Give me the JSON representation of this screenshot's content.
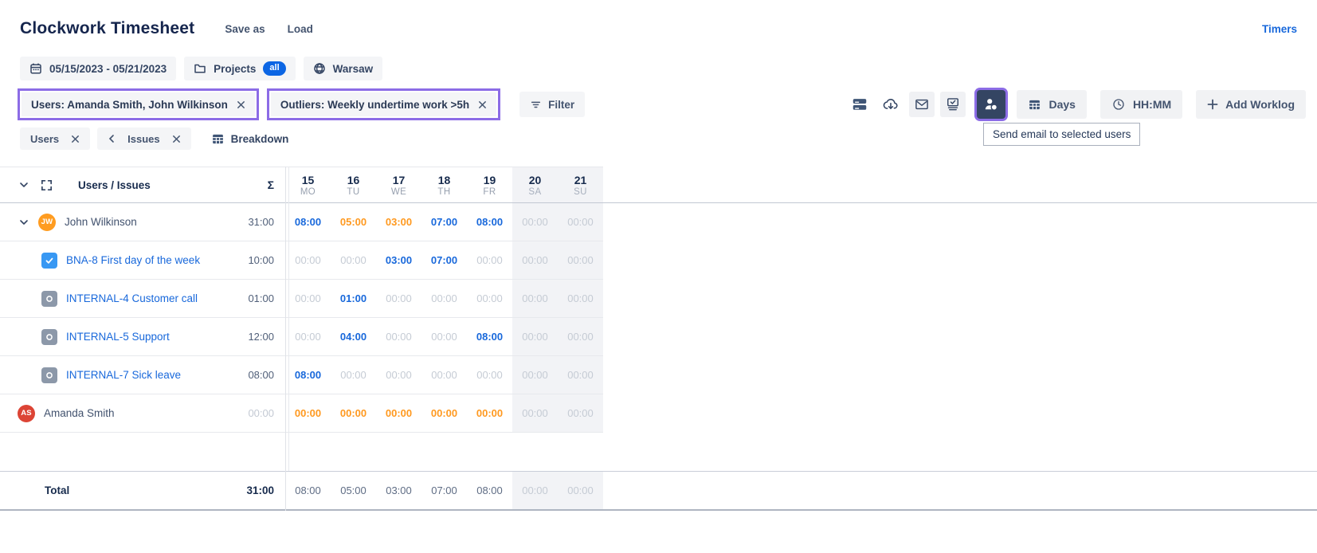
{
  "colors": {
    "highlight": "#8C6CE6",
    "blue": "#1868DB",
    "orange": "#FF991F",
    "badge_blue": "#0C66E4"
  },
  "header": {
    "title": "Clockwork Timesheet",
    "save_as": "Save as",
    "load": "Load",
    "timers": "Timers"
  },
  "scope": {
    "date_range": "05/15/2023 - 05/21/2023",
    "projects": "Projects",
    "projects_badge": "all",
    "location": "Warsaw"
  },
  "filters": {
    "users": "Users: Amanda Smith, John Wilkinson",
    "outliers": "Outliers: Weekly undertime work >5h",
    "filter": "Filter"
  },
  "toolbar": {
    "tooltip": "Send email to selected users",
    "days": "Days",
    "time_format": "HH:MM",
    "add_worklog": "Add Worklog",
    "icons": [
      "row-density",
      "cloud-download",
      "mail",
      "approvals-screen",
      "select-users",
      "grid-days",
      "clock",
      "plus"
    ]
  },
  "grouping": {
    "users": "Users",
    "issues": "Issues",
    "breakdown": "Breakdown"
  },
  "table": {
    "name_column": "Users / Issues",
    "sum_symbol": "Σ",
    "days": [
      {
        "num": "15",
        "name": "MO",
        "weekend": false
      },
      {
        "num": "16",
        "name": "TU",
        "weekend": false
      },
      {
        "num": "17",
        "name": "WE",
        "weekend": false
      },
      {
        "num": "18",
        "name": "TH",
        "weekend": false
      },
      {
        "num": "19",
        "name": "FR",
        "weekend": false
      },
      {
        "num": "20",
        "name": "SA",
        "weekend": true
      },
      {
        "num": "21",
        "name": "SU",
        "weekend": true
      }
    ],
    "rows": [
      {
        "kind": "user",
        "avatar": "JW",
        "avatar_color": "#FF9C20",
        "name": "John Wilkinson",
        "total": "31:00",
        "cells": [
          {
            "v": "08:00",
            "s": "blue"
          },
          {
            "v": "05:00",
            "s": "orange"
          },
          {
            "v": "03:00",
            "s": "orange"
          },
          {
            "v": "07:00",
            "s": "blue"
          },
          {
            "v": "08:00",
            "s": "blue"
          },
          {
            "v": "00:00",
            "s": "muted"
          },
          {
            "v": "00:00",
            "s": "muted"
          }
        ]
      },
      {
        "kind": "issue",
        "icon": "task",
        "name": "BNA-8 First day of the week",
        "total": "10:00",
        "cells": [
          {
            "v": "00:00",
            "s": "muted"
          },
          {
            "v": "00:00",
            "s": "muted"
          },
          {
            "v": "03:00",
            "s": "blue"
          },
          {
            "v": "07:00",
            "s": "blue"
          },
          {
            "v": "00:00",
            "s": "muted"
          },
          {
            "v": "00:00",
            "s": "muted"
          },
          {
            "v": "00:00",
            "s": "muted"
          }
        ]
      },
      {
        "kind": "issue",
        "icon": "circle",
        "name": "INTERNAL-4 Customer call",
        "total": "01:00",
        "cells": [
          {
            "v": "00:00",
            "s": "muted"
          },
          {
            "v": "01:00",
            "s": "blue"
          },
          {
            "v": "00:00",
            "s": "muted"
          },
          {
            "v": "00:00",
            "s": "muted"
          },
          {
            "v": "00:00",
            "s": "muted"
          },
          {
            "v": "00:00",
            "s": "muted"
          },
          {
            "v": "00:00",
            "s": "muted"
          }
        ]
      },
      {
        "kind": "issue",
        "icon": "circle",
        "name": "INTERNAL-5 Support",
        "total": "12:00",
        "cells": [
          {
            "v": "00:00",
            "s": "muted"
          },
          {
            "v": "04:00",
            "s": "blue"
          },
          {
            "v": "00:00",
            "s": "muted"
          },
          {
            "v": "00:00",
            "s": "muted"
          },
          {
            "v": "08:00",
            "s": "blue"
          },
          {
            "v": "00:00",
            "s": "muted"
          },
          {
            "v": "00:00",
            "s": "muted"
          }
        ]
      },
      {
        "kind": "issue",
        "icon": "circle",
        "name": "INTERNAL-7 Sick leave",
        "total": "08:00",
        "cells": [
          {
            "v": "08:00",
            "s": "blue"
          },
          {
            "v": "00:00",
            "s": "muted"
          },
          {
            "v": "00:00",
            "s": "muted"
          },
          {
            "v": "00:00",
            "s": "muted"
          },
          {
            "v": "00:00",
            "s": "muted"
          },
          {
            "v": "00:00",
            "s": "muted"
          },
          {
            "v": "00:00",
            "s": "muted"
          }
        ]
      },
      {
        "kind": "flat",
        "avatar": "AS",
        "avatar_color": "#DC4435",
        "name": "Amanda Smith",
        "total": "00:00",
        "total_muted": true,
        "cells": [
          {
            "v": "00:00",
            "s": "orange"
          },
          {
            "v": "00:00",
            "s": "orange"
          },
          {
            "v": "00:00",
            "s": "orange"
          },
          {
            "v": "00:00",
            "s": "orange"
          },
          {
            "v": "00:00",
            "s": "orange"
          },
          {
            "v": "00:00",
            "s": "muted"
          },
          {
            "v": "00:00",
            "s": "muted"
          }
        ]
      }
    ],
    "total": {
      "label": "Total",
      "total": "31:00",
      "cells": [
        {
          "v": "08:00",
          "s": "total"
        },
        {
          "v": "05:00",
          "s": "total"
        },
        {
          "v": "03:00",
          "s": "total"
        },
        {
          "v": "07:00",
          "s": "total"
        },
        {
          "v": "08:00",
          "s": "total"
        },
        {
          "v": "00:00",
          "s": "muted"
        },
        {
          "v": "00:00",
          "s": "muted"
        }
      ]
    }
  }
}
